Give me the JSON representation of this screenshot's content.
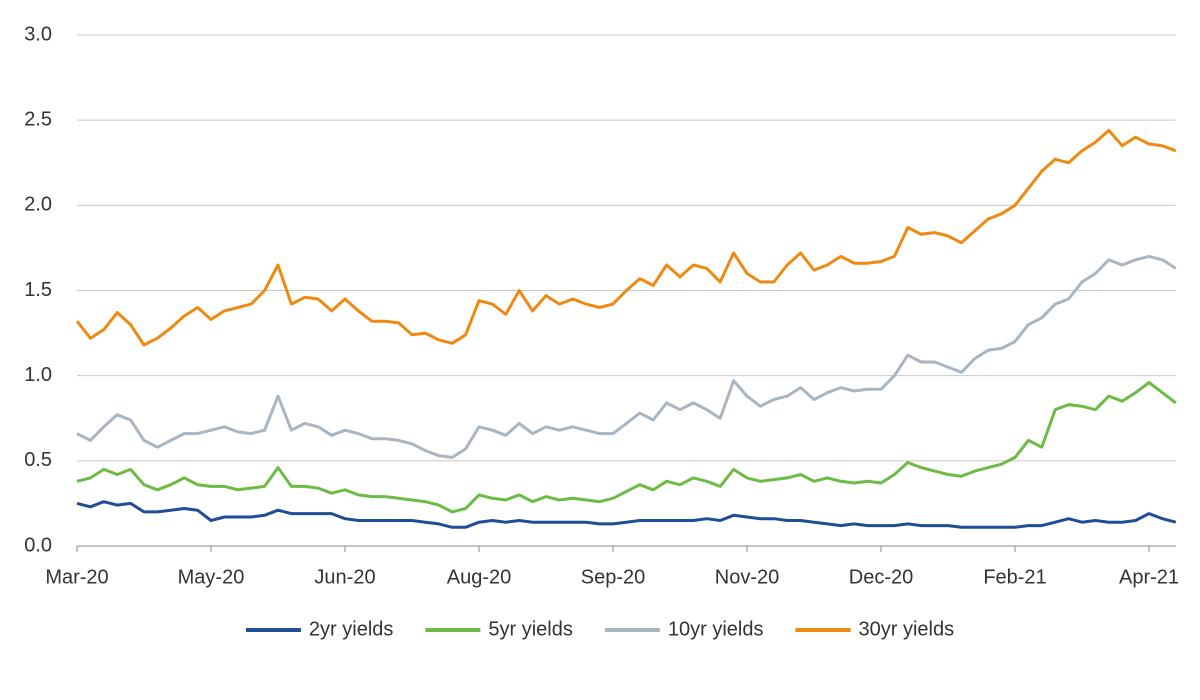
{
  "chart_data": {
    "type": "line",
    "categories": [
      "Mar-20",
      null,
      null,
      null,
      null,
      null,
      null,
      null,
      null,
      null,
      "May-20",
      null,
      null,
      null,
      null,
      null,
      null,
      null,
      null,
      null,
      "Jun-20",
      null,
      null,
      null,
      null,
      null,
      null,
      null,
      null,
      null,
      "Aug-20",
      null,
      null,
      null,
      null,
      null,
      null,
      null,
      null,
      null,
      "Sep-20",
      null,
      null,
      null,
      null,
      null,
      null,
      null,
      null,
      null,
      "Nov-20",
      null,
      null,
      null,
      null,
      null,
      null,
      null,
      null,
      null,
      "Dec-20",
      null,
      null,
      null,
      null,
      null,
      null,
      null,
      null,
      null,
      "Feb-21",
      null,
      null,
      null,
      null,
      null,
      null,
      null,
      null,
      null,
      "Apr-21",
      null,
      null
    ],
    "series": [
      {
        "name": "2yr yields",
        "color": "#1f4e96",
        "values": [
          0.25,
          0.23,
          0.26,
          0.24,
          0.25,
          0.2,
          0.2,
          0.21,
          0.22,
          0.21,
          0.15,
          0.17,
          0.17,
          0.17,
          0.18,
          0.21,
          0.19,
          0.19,
          0.19,
          0.19,
          0.16,
          0.15,
          0.15,
          0.15,
          0.15,
          0.15,
          0.14,
          0.13,
          0.11,
          0.11,
          0.14,
          0.15,
          0.14,
          0.15,
          0.14,
          0.14,
          0.14,
          0.14,
          0.14,
          0.13,
          0.13,
          0.14,
          0.15,
          0.15,
          0.15,
          0.15,
          0.15,
          0.16,
          0.15,
          0.18,
          0.17,
          0.16,
          0.16,
          0.15,
          0.15,
          0.14,
          0.13,
          0.12,
          0.13,
          0.12,
          0.12,
          0.12,
          0.13,
          0.12,
          0.12,
          0.12,
          0.11,
          0.11,
          0.11,
          0.11,
          0.11,
          0.12,
          0.12,
          0.14,
          0.16,
          0.14,
          0.15,
          0.14,
          0.14,
          0.15,
          0.19,
          0.16,
          0.14
        ]
      },
      {
        "name": "5yr yields",
        "color": "#6dbb45",
        "values": [
          0.38,
          0.4,
          0.45,
          0.42,
          0.45,
          0.36,
          0.33,
          0.36,
          0.4,
          0.36,
          0.35,
          0.35,
          0.33,
          0.34,
          0.35,
          0.46,
          0.35,
          0.35,
          0.34,
          0.31,
          0.33,
          0.3,
          0.29,
          0.29,
          0.28,
          0.27,
          0.26,
          0.24,
          0.2,
          0.22,
          0.3,
          0.28,
          0.27,
          0.3,
          0.26,
          0.29,
          0.27,
          0.28,
          0.27,
          0.26,
          0.28,
          0.32,
          0.36,
          0.33,
          0.38,
          0.36,
          0.4,
          0.38,
          0.35,
          0.45,
          0.4,
          0.38,
          0.39,
          0.4,
          0.42,
          0.38,
          0.4,
          0.38,
          0.37,
          0.38,
          0.37,
          0.42,
          0.49,
          0.46,
          0.44,
          0.42,
          0.41,
          0.44,
          0.46,
          0.48,
          0.52,
          0.62,
          0.58,
          0.8,
          0.83,
          0.82,
          0.8,
          0.88,
          0.85,
          0.9,
          0.96,
          0.9,
          0.84
        ]
      },
      {
        "name": "10yr yields",
        "color": "#a9b5c0",
        "values": [
          0.66,
          0.62,
          0.7,
          0.77,
          0.74,
          0.62,
          0.58,
          0.62,
          0.66,
          0.66,
          0.68,
          0.7,
          0.67,
          0.66,
          0.68,
          0.88,
          0.68,
          0.72,
          0.7,
          0.65,
          0.68,
          0.66,
          0.63,
          0.63,
          0.62,
          0.6,
          0.56,
          0.53,
          0.52,
          0.57,
          0.7,
          0.68,
          0.65,
          0.72,
          0.66,
          0.7,
          0.68,
          0.7,
          0.68,
          0.66,
          0.66,
          0.72,
          0.78,
          0.74,
          0.84,
          0.8,
          0.84,
          0.8,
          0.75,
          0.97,
          0.88,
          0.82,
          0.86,
          0.88,
          0.93,
          0.86,
          0.9,
          0.93,
          0.91,
          0.92,
          0.92,
          1.0,
          1.12,
          1.08,
          1.08,
          1.05,
          1.02,
          1.1,
          1.15,
          1.16,
          1.2,
          1.3,
          1.34,
          1.42,
          1.45,
          1.55,
          1.6,
          1.68,
          1.65,
          1.68,
          1.7,
          1.68,
          1.63
        ]
      },
      {
        "name": "30yr yields",
        "color": "#ee8a12",
        "values": [
          1.32,
          1.22,
          1.27,
          1.37,
          1.3,
          1.18,
          1.22,
          1.28,
          1.35,
          1.4,
          1.33,
          1.38,
          1.4,
          1.42,
          1.5,
          1.65,
          1.42,
          1.46,
          1.45,
          1.38,
          1.45,
          1.38,
          1.32,
          1.32,
          1.31,
          1.24,
          1.25,
          1.21,
          1.19,
          1.24,
          1.44,
          1.42,
          1.36,
          1.5,
          1.38,
          1.47,
          1.42,
          1.45,
          1.42,
          1.4,
          1.42,
          1.5,
          1.57,
          1.53,
          1.65,
          1.58,
          1.65,
          1.63,
          1.55,
          1.72,
          1.6,
          1.55,
          1.55,
          1.65,
          1.72,
          1.62,
          1.65,
          1.7,
          1.66,
          1.66,
          1.67,
          1.7,
          1.87,
          1.83,
          1.84,
          1.82,
          1.78,
          1.85,
          1.92,
          1.95,
          2.0,
          2.1,
          2.2,
          2.27,
          2.25,
          2.32,
          2.37,
          2.44,
          2.35,
          2.4,
          2.36,
          2.35,
          2.32
        ]
      }
    ],
    "ylim": [
      0,
      3
    ],
    "yticks": [
      {
        "value": 0,
        "label": "0.0"
      },
      0.5,
      {
        "value": 1,
        "label": "1.0"
      },
      1.5,
      {
        "value": 2,
        "label": "2.0"
      },
      2.5,
      {
        "value": 3,
        "label": "3.0"
      }
    ],
    "grid": true,
    "legend": "bottom"
  }
}
